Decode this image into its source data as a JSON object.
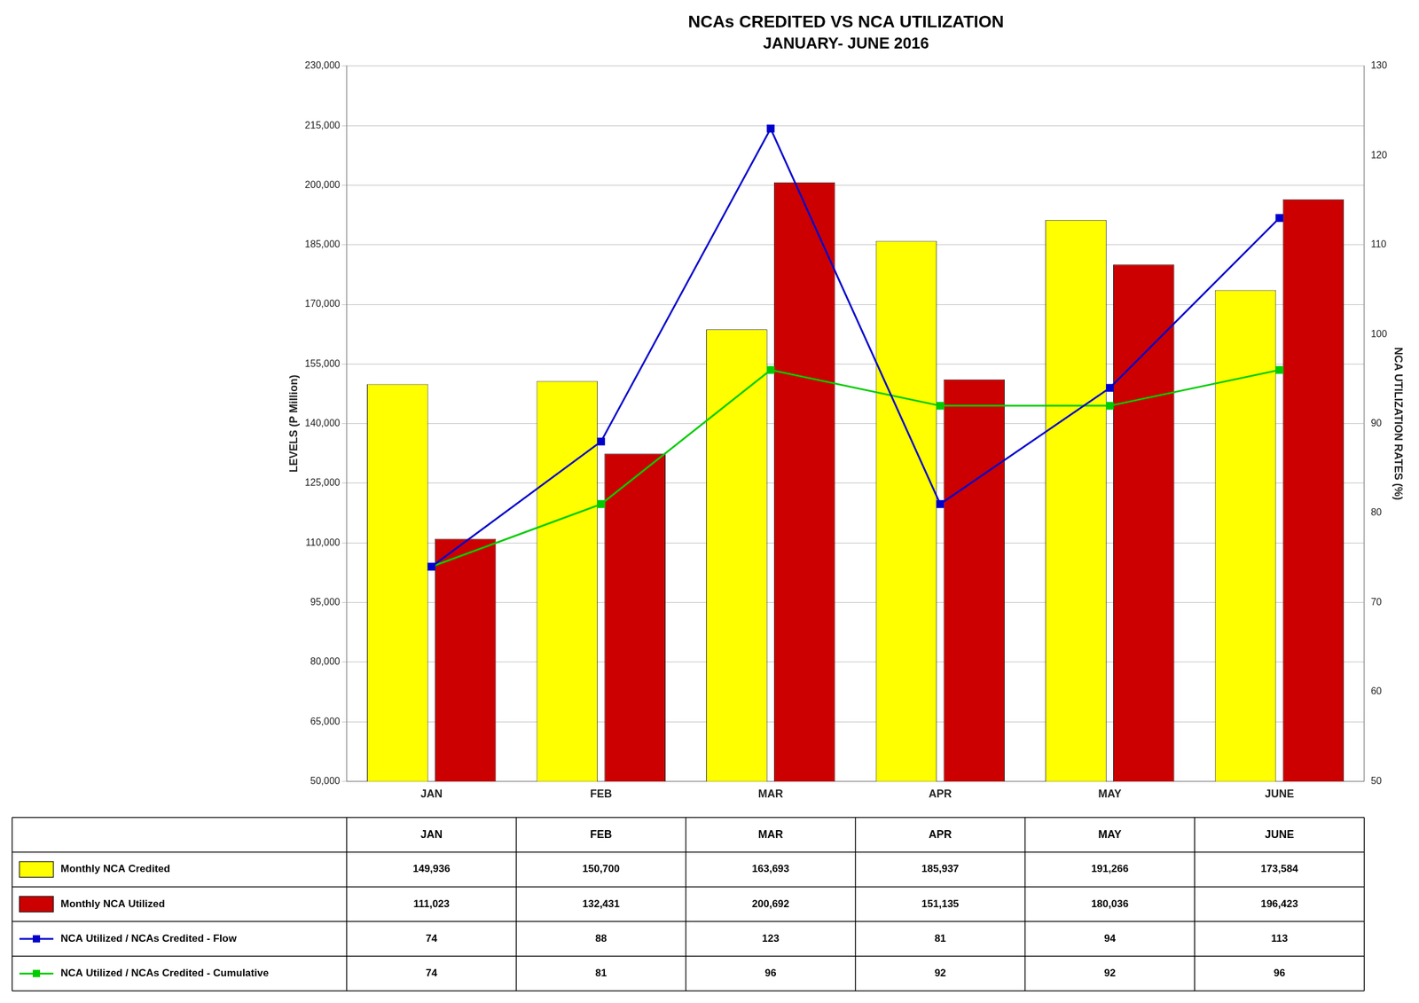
{
  "chart_data": {
    "type": "bar",
    "title": "NCAs CREDITED VS NCA UTILIZATION",
    "subtitle": "JANUARY- JUNE 2016",
    "categories": [
      "JAN",
      "FEB",
      "MAR",
      "APR",
      "MAY",
      "JUNE"
    ],
    "ylabel": "LEVELS (P Million)",
    "y2label": "NCA UTILIZATION RATES (%)",
    "ylim": [
      50000,
      230000
    ],
    "yticks": [
      {
        "value": 50000,
        "label": "50,000"
      },
      {
        "value": 65000,
        "label": "65,000"
      },
      {
        "value": 80000,
        "label": "80,000"
      },
      {
        "value": 95000,
        "label": "95,000"
      },
      {
        "value": 110000,
        "label": "110,000"
      },
      {
        "value": 125000,
        "label": "125,000"
      },
      {
        "value": 140000,
        "label": "140,000"
      },
      {
        "value": 155000,
        "label": "155,000"
      },
      {
        "value": 170000,
        "label": "170,000"
      },
      {
        "value": 185000,
        "label": "185,000"
      },
      {
        "value": 200000,
        "label": "200,000"
      },
      {
        "value": 215000,
        "label": "215,000"
      },
      {
        "value": 230000,
        "label": "230,000"
      }
    ],
    "y2lim": [
      50,
      130
    ],
    "y2ticks": [
      50,
      60,
      70,
      80,
      90,
      100,
      110,
      120,
      130
    ],
    "grid": true,
    "legend": "bottom",
    "series": [
      {
        "name": "Monthly NCA Credited",
        "type": "bar",
        "color": "#FFFF00",
        "values": [
          149936,
          150700,
          163693,
          185937,
          191266,
          173584
        ],
        "value_labels": [
          "149,936",
          "150,700",
          "163,693",
          "185,937",
          "191,266",
          "173,584"
        ]
      },
      {
        "name": "Monthly NCA Utilized",
        "type": "bar",
        "color": "#CC0000",
        "values": [
          111023,
          132431,
          200692,
          151135,
          180036,
          196423
        ],
        "value_labels": [
          "111,023",
          "132,431",
          "200,692",
          "151,135",
          "180,036",
          "196,423"
        ]
      },
      {
        "name": "NCA Utilized / NCAs Credited - Flow",
        "type": "line",
        "axis": "y2",
        "color": "#0000CC",
        "marker": "square",
        "values": [
          74,
          88,
          123,
          81,
          94,
          113
        ]
      },
      {
        "name": "NCA Utilized / NCAs Credited - Cumulative",
        "type": "line",
        "axis": "y2",
        "color": "#00CC00",
        "marker": "square",
        "values": [
          74,
          81,
          96,
          92,
          92,
          96
        ]
      }
    ]
  }
}
